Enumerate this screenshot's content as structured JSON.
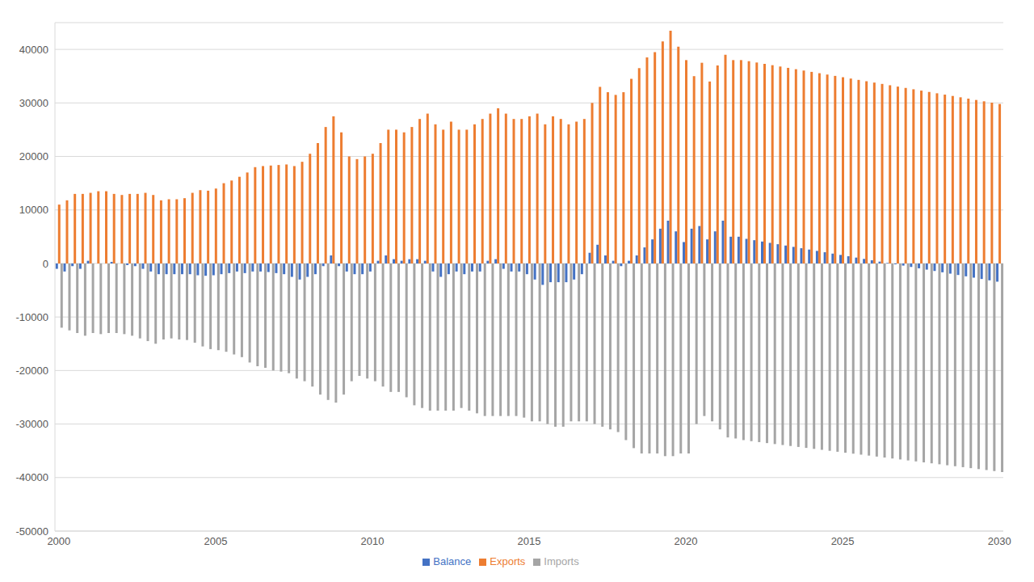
{
  "chart_data": {
    "type": "bar",
    "categories": [
      "2000",
      null,
      null,
      null,
      null,
      null,
      null,
      null,
      null,
      null,
      null,
      null,
      null,
      null,
      null,
      null,
      null,
      null,
      null,
      null,
      "2005",
      null,
      null,
      null,
      null,
      null,
      null,
      null,
      null,
      null,
      null,
      null,
      null,
      null,
      null,
      null,
      null,
      null,
      null,
      null,
      "2010",
      null,
      null,
      null,
      null,
      null,
      null,
      null,
      null,
      null,
      null,
      null,
      null,
      null,
      null,
      null,
      null,
      null,
      null,
      null,
      "2015",
      null,
      null,
      null,
      null,
      null,
      null,
      null,
      null,
      null,
      null,
      null,
      null,
      null,
      null,
      null,
      null,
      null,
      null,
      null,
      "2020",
      null,
      null,
      null,
      null,
      null,
      null,
      null,
      null,
      null,
      null,
      null,
      null,
      null,
      null,
      null,
      null,
      null,
      null,
      null,
      "2025",
      null,
      null,
      null,
      null,
      null,
      null,
      null,
      null,
      null,
      null,
      null,
      null,
      null,
      null,
      null,
      null,
      null,
      null,
      null,
      "2030"
    ],
    "series": [
      {
        "name": "Balance",
        "color": "#4472c4",
        "values": [
          -1000,
          -1500,
          -500,
          -1000,
          500,
          0,
          0,
          300,
          0,
          -300,
          -500,
          -1000,
          -1500,
          -2000,
          -2000,
          -2000,
          -2000,
          -2000,
          -2200,
          -2300,
          -2200,
          -2000,
          -1800,
          -1500,
          -1800,
          -1500,
          -1500,
          -1600,
          -1800,
          -2000,
          -2500,
          -3000,
          -2500,
          -2000,
          -500,
          1500,
          -500,
          -1500,
          -2000,
          -2000,
          -1500,
          500,
          1500,
          800,
          500,
          800,
          800,
          500,
          -1500,
          -2500,
          -2000,
          -1500,
          -2000,
          -1500,
          -1500,
          500,
          800,
          -1000,
          -1500,
          -1500,
          -2000,
          -3000,
          -4000,
          -3500,
          -3500,
          -3500,
          -3000,
          -2000,
          2000,
          3500,
          1500,
          500,
          -500,
          500,
          1500,
          3000,
          4500,
          6500,
          8000,
          6000,
          4000,
          6500,
          7000,
          4500,
          6000,
          8000,
          5000,
          5000,
          4600,
          4350,
          4100,
          3850,
          3600,
          3350,
          3100,
          2850,
          2600,
          2350,
          2100,
          1850,
          1600,
          1350,
          1100,
          850,
          600,
          350,
          100,
          -150,
          -400,
          -650,
          -900,
          -1150,
          -1400,
          -1650,
          -1900,
          -2150,
          -2400,
          -2650,
          -2900,
          -3150,
          -3400
        ]
      },
      {
        "name": "Exports",
        "color": "#ed7d31",
        "values": [
          11000,
          11800,
          13000,
          13000,
          13200,
          13500,
          13500,
          13000,
          12800,
          13000,
          13000,
          13200,
          12800,
          11800,
          12000,
          12000,
          12200,
          13200,
          13700,
          13600,
          14000,
          15000,
          15500,
          16200,
          17000,
          18000,
          18200,
          18300,
          18400,
          18500,
          18200,
          19000,
          20500,
          22500,
          25500,
          27500,
          24500,
          20000,
          19500,
          20000,
          20500,
          22500,
          25000,
          25000,
          24500,
          25500,
          27000,
          28000,
          26000,
          25000,
          26500,
          25000,
          25000,
          26000,
          27000,
          28000,
          29000,
          28000,
          27000,
          27000,
          27500,
          28000,
          26000,
          27500,
          27000,
          26000,
          26500,
          27000,
          30000,
          33000,
          32000,
          31500,
          32000,
          34500,
          36500,
          38500,
          39500,
          41500,
          43500,
          40500,
          38000,
          35000,
          37500,
          34000,
          37000,
          39000,
          38000,
          38000,
          37800,
          37550,
          37300,
          37050,
          36800,
          36550,
          36300,
          36050,
          35800,
          35550,
          35300,
          35050,
          34800,
          34550,
          34300,
          34050,
          33800,
          33550,
          33300,
          33050,
          32800,
          32550,
          32300,
          32050,
          31800,
          31550,
          31300,
          31050,
          30800,
          30550,
          30300,
          30050,
          29800
        ]
      },
      {
        "name": "Imports",
        "color": "#a5a5a5",
        "values": [
          -12000,
          -12500,
          -13000,
          -13500,
          -13000,
          -13200,
          -13000,
          -13000,
          -13200,
          -13500,
          -14000,
          -14500,
          -15000,
          -14200,
          -14000,
          -14200,
          -14300,
          -14800,
          -15500,
          -16000,
          -16200,
          -16500,
          -17000,
          -17500,
          -18500,
          -19200,
          -19500,
          -20000,
          -20200,
          -20500,
          -21500,
          -22000,
          -23000,
          -24500,
          -25500,
          -26000,
          -24500,
          -22000,
          -21000,
          -21500,
          -22000,
          -23000,
          -24000,
          -24000,
          -25000,
          -26500,
          -27000,
          -27500,
          -27500,
          -27500,
          -27500,
          -27000,
          -27500,
          -28000,
          -28500,
          -28500,
          -28500,
          -28500,
          -28500,
          -28800,
          -29500,
          -29500,
          -30000,
          -30500,
          -30500,
          -29500,
          -29500,
          -29500,
          -30000,
          -30500,
          -31000,
          -31500,
          -33000,
          -34500,
          -35500,
          -35500,
          -35500,
          -36000,
          -36000,
          -35500,
          -35500,
          -30000,
          -28500,
          -29500,
          -31000,
          -32500,
          -32700,
          -33000,
          -33200,
          -33380,
          -33560,
          -33740,
          -33920,
          -34100,
          -34280,
          -34460,
          -34640,
          -34820,
          -35000,
          -35180,
          -35360,
          -35540,
          -35720,
          -35900,
          -36080,
          -36260,
          -36440,
          -36620,
          -36800,
          -36980,
          -37160,
          -37340,
          -37520,
          -37700,
          -37880,
          -38060,
          -38240,
          -38420,
          -38600,
          -38780,
          -38960
        ]
      }
    ],
    "ylim": [
      -50000,
      45000
    ],
    "yticks": [
      -50000,
      -40000,
      -30000,
      -20000,
      -10000,
      0,
      10000,
      20000,
      30000,
      40000
    ],
    "grid": true,
    "legend": "bottom"
  }
}
